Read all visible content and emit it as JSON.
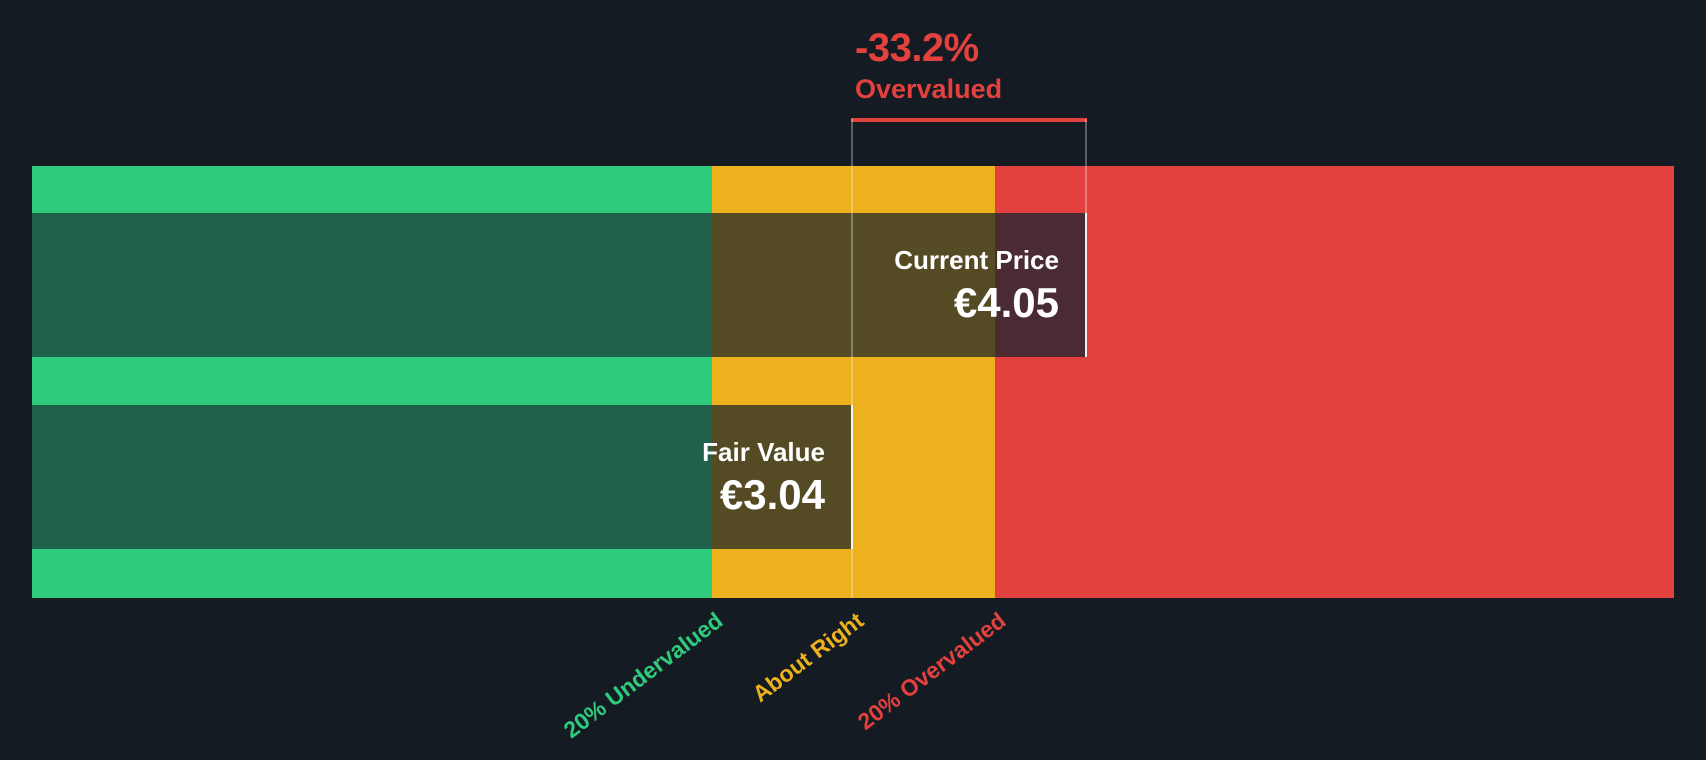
{
  "annotation": {
    "value": "-33.2%",
    "label": "Overvalued"
  },
  "bars": {
    "current_price": {
      "label": "Current Price",
      "value": "€4.05"
    },
    "fair_value": {
      "label": "Fair Value",
      "value": "€3.04"
    }
  },
  "axis": {
    "ticks": [
      {
        "label": "20% Undervalued"
      },
      {
        "label": "About Right"
      },
      {
        "label": "20% Overvalued"
      }
    ]
  },
  "chart_data": {
    "type": "bar",
    "subtype": "share-price-vs-fair-value-gauge",
    "title": "-33.2% Overvalued",
    "series": [
      {
        "name": "Current Price",
        "value": 4.05,
        "currency": "EUR",
        "display": "€4.05"
      },
      {
        "name": "Fair Value",
        "value": 3.04,
        "currency": "EUR",
        "display": "€3.04"
      }
    ],
    "discount_pct": -33.2,
    "zone_labels": [
      "20% Undervalued",
      "About Right",
      "20% Overvalued"
    ],
    "zone_colors": [
      "#2FCB7D",
      "#ECB11D",
      "#E2413E"
    ],
    "legend_position": "none",
    "grid": false
  },
  "css_vars": {
    "bg": "#151B23",
    "green": "#2FCB7D",
    "yellow": "#ECB11D",
    "red": "#E2413E",
    "dgreen": "#20614B",
    "dolive": "#544B25",
    "dmaroon": "#4A2B34",
    "accent": "#E2413E",
    "z1": "0.4141",
    "z2": "0.5865",
    "fv": "0.5",
    "cp": "0.6425"
  }
}
